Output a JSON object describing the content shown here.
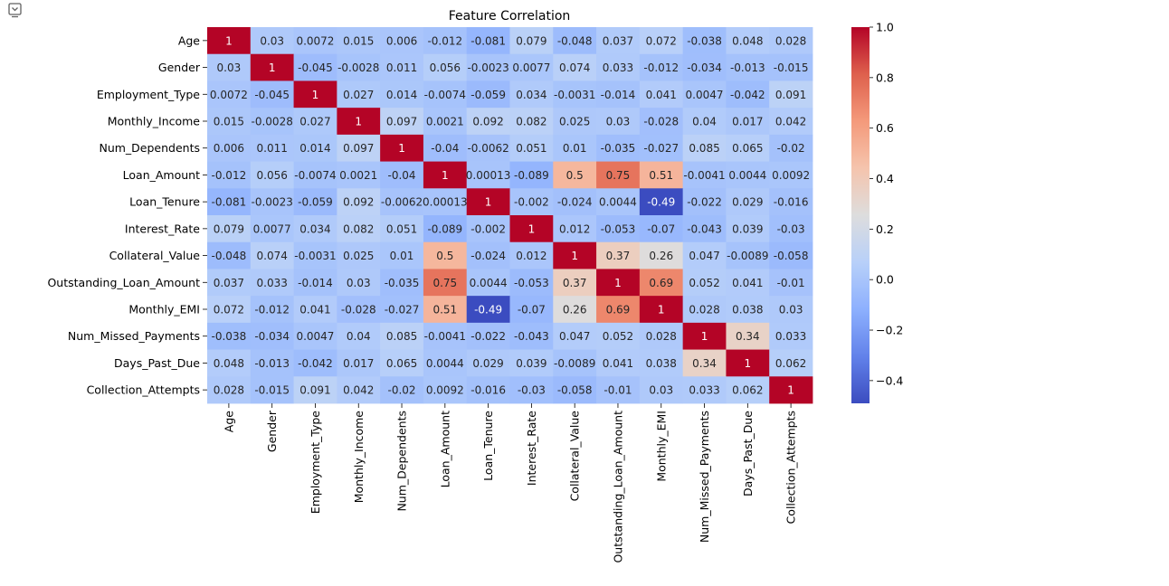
{
  "toolbar": {
    "icon": "output-collapse-icon"
  },
  "chart_data": {
    "type": "heatmap",
    "title": "Feature Correlation",
    "labels": [
      "Age",
      "Gender",
      "Employment_Type",
      "Monthly_Income",
      "Num_Dependents",
      "Loan_Amount",
      "Loan_Tenure",
      "Interest_Rate",
      "Collateral_Value",
      "Outstanding_Loan_Amount",
      "Monthly_EMI",
      "Num_Missed_Payments",
      "Days_Past_Due",
      "Collection_Attempts"
    ],
    "values": [
      [
        1,
        0.03,
        0.0072,
        0.015,
        0.006,
        -0.012,
        -0.081,
        0.079,
        -0.048,
        0.037,
        0.072,
        -0.038,
        0.048,
        0.028
      ],
      [
        0.03,
        1,
        -0.045,
        -0.0028,
        0.011,
        0.056,
        -0.0023,
        0.0077,
        0.074,
        0.033,
        -0.012,
        -0.034,
        -0.013,
        -0.015
      ],
      [
        0.0072,
        -0.045,
        1,
        0.027,
        0.014,
        -0.0074,
        -0.059,
        0.034,
        -0.0031,
        -0.014,
        0.041,
        0.0047,
        -0.042,
        0.091
      ],
      [
        0.015,
        -0.0028,
        0.027,
        1,
        0.097,
        0.0021,
        0.092,
        0.082,
        0.025,
        0.03,
        -0.028,
        0.04,
        0.017,
        0.042
      ],
      [
        0.006,
        0.011,
        0.014,
        0.097,
        1,
        -0.04,
        -0.0062,
        0.051,
        0.01,
        -0.035,
        -0.027,
        0.085,
        0.065,
        -0.02
      ],
      [
        -0.012,
        0.056,
        -0.0074,
        0.0021,
        -0.04,
        1,
        0.00013,
        -0.089,
        0.5,
        0.75,
        0.51,
        -0.0041,
        0.0044,
        0.0092
      ],
      [
        -0.081,
        -0.0023,
        -0.059,
        0.092,
        -0.0062,
        0.00013,
        1,
        -0.002,
        -0.024,
        0.0044,
        -0.49,
        -0.022,
        0.029,
        -0.016
      ],
      [
        0.079,
        0.0077,
        0.034,
        0.082,
        0.051,
        -0.089,
        -0.002,
        1,
        0.012,
        -0.053,
        -0.07,
        -0.043,
        0.039,
        -0.03
      ],
      [
        -0.048,
        0.074,
        -0.0031,
        0.025,
        0.01,
        0.5,
        -0.024,
        0.012,
        1,
        0.37,
        0.26,
        0.047,
        -0.0089,
        -0.058
      ],
      [
        0.037,
        0.033,
        -0.014,
        0.03,
        -0.035,
        0.75,
        0.0044,
        -0.053,
        0.37,
        1,
        0.69,
        0.052,
        0.041,
        -0.01
      ],
      [
        0.072,
        -0.012,
        0.041,
        -0.028,
        -0.027,
        0.51,
        -0.49,
        -0.07,
        0.26,
        0.69,
        1,
        0.028,
        0.038,
        0.03
      ],
      [
        -0.038,
        -0.034,
        0.0047,
        0.04,
        0.085,
        -0.0041,
        -0.022,
        -0.043,
        0.047,
        0.052,
        0.028,
        1,
        0.34,
        0.033
      ],
      [
        0.048,
        -0.013,
        -0.042,
        0.017,
        0.065,
        0.0044,
        0.029,
        0.039,
        -0.0089,
        0.041,
        0.038,
        0.34,
        1,
        0.062
      ],
      [
        0.028,
        -0.015,
        0.091,
        0.042,
        -0.02,
        0.0092,
        -0.016,
        -0.03,
        -0.058,
        -0.01,
        0.03,
        0.033,
        0.062,
        1
      ]
    ],
    "annotations": [
      [
        "1",
        "0.03",
        "0.0072",
        "0.015",
        "0.006",
        "-0.012",
        "-0.081",
        "0.079",
        "-0.048",
        "0.037",
        "0.072",
        "-0.038",
        "0.048",
        "0.028"
      ],
      [
        "0.03",
        "1",
        "-0.045",
        "-0.0028",
        "0.011",
        "0.056",
        "-0.0023",
        "0.0077",
        "0.074",
        "0.033",
        "-0.012",
        "-0.034",
        "-0.013",
        "-0.015"
      ],
      [
        "0.0072",
        "-0.045",
        "1",
        "0.027",
        "0.014",
        "-0.0074",
        "-0.059",
        "0.034",
        "-0.0031",
        "-0.014",
        "0.041",
        "0.0047",
        "-0.042",
        "0.091"
      ],
      [
        "0.015",
        "-0.0028",
        "0.027",
        "1",
        "0.097",
        "0.0021",
        "0.092",
        "0.082",
        "0.025",
        "0.03",
        "-0.028",
        "0.04",
        "0.017",
        "0.042"
      ],
      [
        "0.006",
        "0.011",
        "0.014",
        "0.097",
        "1",
        "-0.04",
        "-0.0062",
        "0.051",
        "0.01",
        "-0.035",
        "-0.027",
        "0.085",
        "0.065",
        "-0.02"
      ],
      [
        "-0.012",
        "0.056",
        "-0.0074",
        "0.0021",
        "-0.04",
        "1",
        "0.00013",
        "-0.089",
        "0.5",
        "0.75",
        "0.51",
        "-0.0041",
        "0.0044",
        "0.0092"
      ],
      [
        "-0.081",
        "-0.0023",
        "-0.059",
        "0.092",
        "-0.0062",
        "0.00013",
        "1",
        "-0.002",
        "-0.024",
        "0.0044",
        "-0.49",
        "-0.022",
        "0.029",
        "-0.016"
      ],
      [
        "0.079",
        "0.0077",
        "0.034",
        "0.082",
        "0.051",
        "-0.089",
        "-0.002",
        "1",
        "0.012",
        "-0.053",
        "-0.07",
        "-0.043",
        "0.039",
        "-0.03"
      ],
      [
        "-0.048",
        "0.074",
        "-0.0031",
        "0.025",
        "0.01",
        "0.5",
        "-0.024",
        "0.012",
        "1",
        "0.37",
        "0.26",
        "0.047",
        "-0.0089",
        "-0.058"
      ],
      [
        "0.037",
        "0.033",
        "-0.014",
        "0.03",
        "-0.035",
        "0.75",
        "0.0044",
        "-0.053",
        "0.37",
        "1",
        "0.69",
        "0.052",
        "0.041",
        "-0.01"
      ],
      [
        "0.072",
        "-0.012",
        "0.041",
        "-0.028",
        "-0.027",
        "0.51",
        "-0.49",
        "-0.07",
        "0.26",
        "0.69",
        "1",
        "0.028",
        "0.038",
        "0.03"
      ],
      [
        "-0.038",
        "-0.034",
        "0.0047",
        "0.04",
        "0.085",
        "-0.0041",
        "-0.022",
        "-0.043",
        "0.047",
        "0.052",
        "0.028",
        "1",
        "0.34",
        "0.033"
      ],
      [
        "0.048",
        "-0.013",
        "-0.042",
        "0.017",
        "0.065",
        "0.0044",
        "0.029",
        "0.039",
        "-0.0089",
        "0.041",
        "0.038",
        "0.34",
        "1",
        "0.062"
      ],
      [
        "0.028",
        "-0.015",
        "0.091",
        "0.042",
        "-0.02",
        "0.0092",
        "-0.016",
        "-0.03",
        "-0.058",
        "-0.01",
        "0.03",
        "0.033",
        "0.062",
        "1"
      ]
    ],
    "colormap": "coolwarm",
    "vmin": -0.49,
    "vmax": 1.0,
    "colorbar_ticks": [
      1.0,
      0.8,
      0.6,
      0.4,
      0.2,
      0.0,
      -0.2,
      -0.4
    ],
    "colorbar_tick_labels": [
      "1.0",
      "0.8",
      "0.6",
      "0.4",
      "0.2",
      "0.0",
      "−0.2",
      "−0.4"
    ],
    "grid": false,
    "legend": "colorbar-right"
  }
}
